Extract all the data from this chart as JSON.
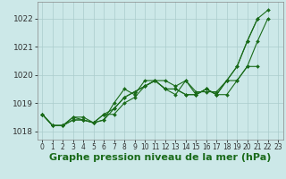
{
  "xlabel": "Graphe pression niveau de la mer (hPa)",
  "background_color": "#cce8e8",
  "grid_color": "#aacccc",
  "line_color": "#1a6b1a",
  "x": [
    0,
    1,
    2,
    3,
    4,
    5,
    6,
    7,
    8,
    9,
    10,
    11,
    12,
    13,
    14,
    15,
    16,
    17,
    18,
    19,
    20,
    21,
    22,
    23
  ],
  "series": [
    [
      1018.6,
      1018.2,
      1018.2,
      1018.5,
      1018.5,
      1018.3,
      1018.4,
      1018.8,
      1019.2,
      1019.4,
      1019.6,
      1019.8,
      1019.8,
      1019.6,
      1019.8,
      1019.4,
      1019.4,
      1019.4,
      1019.8,
      1020.3,
      1021.2,
      1022.0,
      1022.3,
      null
    ],
    [
      1018.6,
      1018.2,
      1018.2,
      1018.5,
      1018.4,
      1018.3,
      1018.4,
      1019.0,
      1019.5,
      1019.3,
      1019.8,
      1019.8,
      1019.5,
      1019.3,
      1019.8,
      1019.3,
      1019.5,
      1019.3,
      1019.8,
      1019.8,
      1020.3,
      1021.2,
      1022.0,
      null
    ],
    [
      1018.6,
      1018.2,
      1018.2,
      1018.4,
      1018.4,
      1018.3,
      1018.6,
      1018.6,
      1019.0,
      1019.2,
      1019.6,
      1019.8,
      1019.5,
      1019.5,
      1019.3,
      1019.3,
      1019.5,
      1019.3,
      1019.3,
      1019.8,
      1020.3,
      1020.3,
      null,
      null
    ],
    [
      1018.6,
      1018.2,
      1018.2,
      1018.4,
      1018.4,
      1018.3,
      1018.6,
      1018.8,
      1019.2,
      1019.4,
      1019.6,
      1019.8,
      1019.5,
      1019.5,
      1019.3,
      1019.3,
      1019.5,
      1019.3,
      1019.8,
      1020.3,
      1021.2,
      1022.0,
      null,
      null
    ]
  ],
  "ylim": [
    1017.7,
    1022.6
  ],
  "yticks": [
    1018,
    1019,
    1020,
    1021,
    1022
  ],
  "xticks": [
    0,
    1,
    2,
    3,
    4,
    5,
    6,
    7,
    8,
    9,
    10,
    11,
    12,
    13,
    14,
    15,
    16,
    17,
    18,
    19,
    20,
    21,
    22,
    23
  ],
  "xlabel_fontsize": 8,
  "ytick_fontsize": 6.5,
  "xtick_fontsize": 5.5,
  "figwidth": 3.2,
  "figheight": 2.0,
  "dpi": 100
}
